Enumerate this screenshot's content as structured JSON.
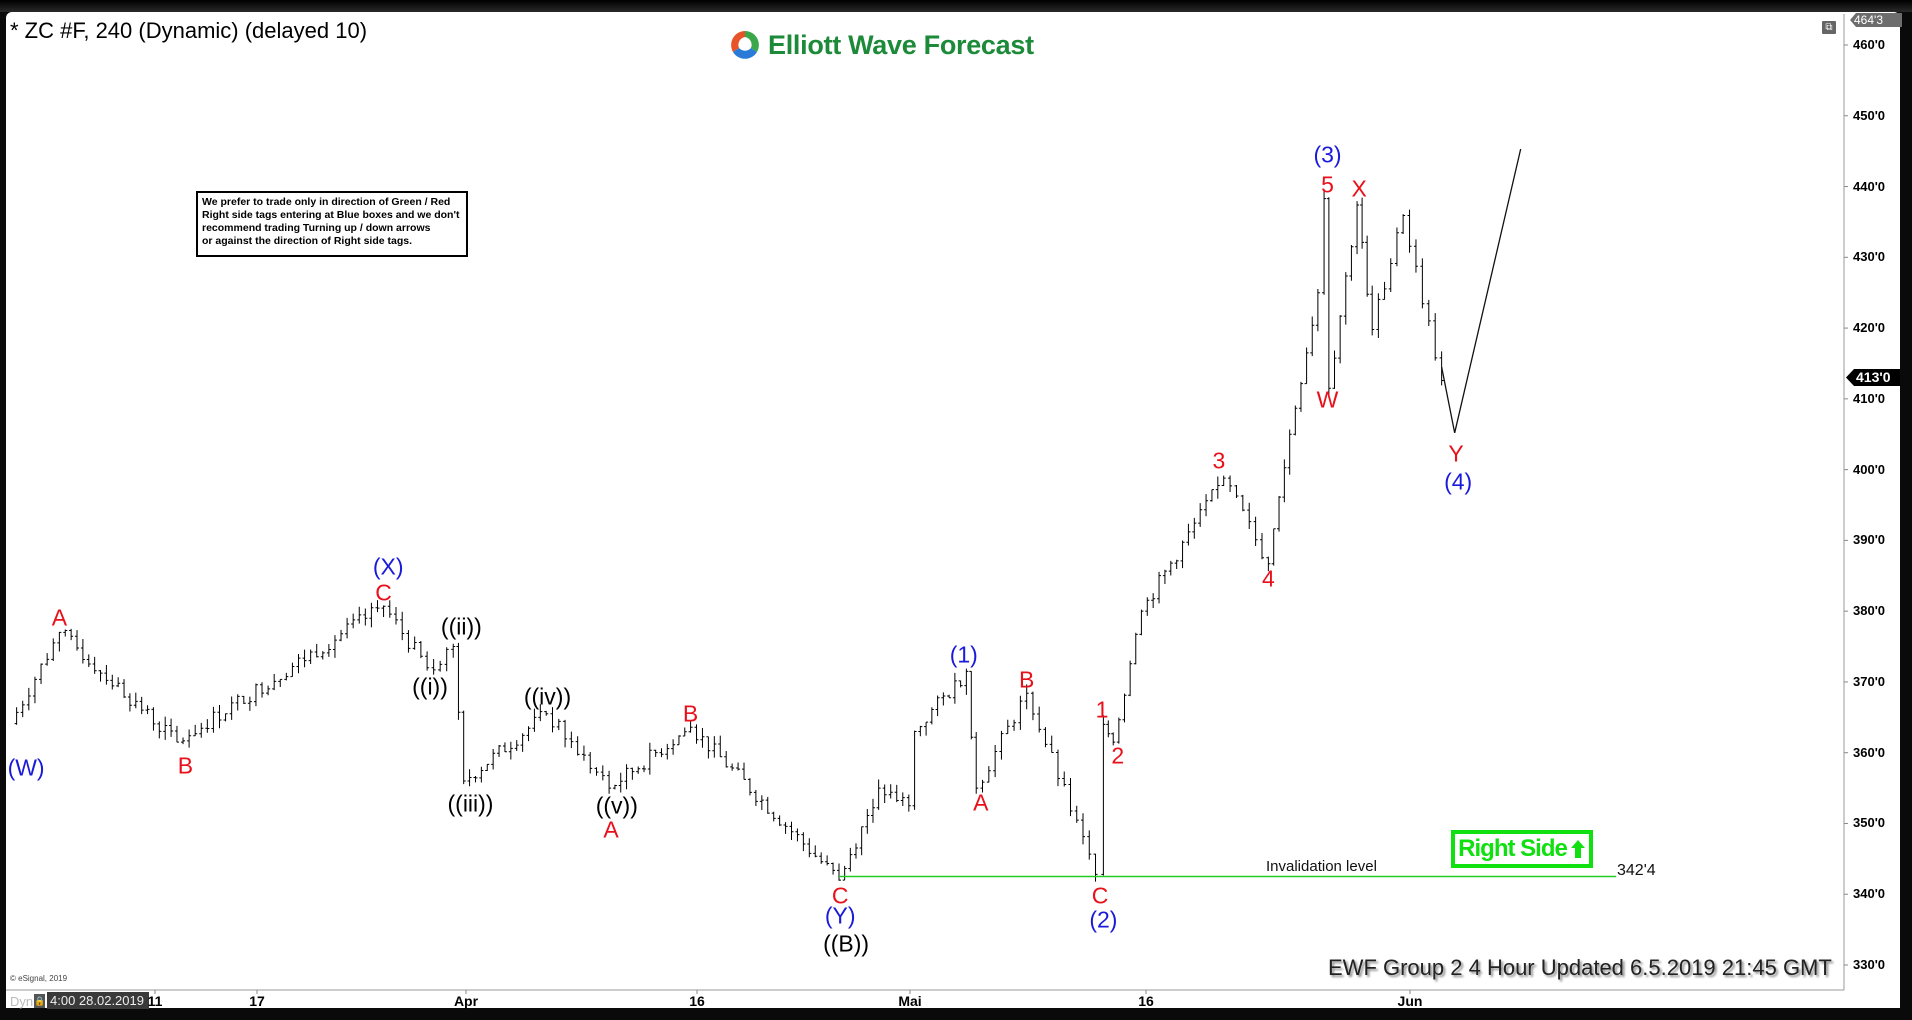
{
  "header": {
    "title": "* ZC #F, 240 (Dynamic) (delayed 10)",
    "logo_text": "Elliott Wave Forecast"
  },
  "note": {
    "lines": [
      "We prefer to trade only in direction of Green / Red",
      "Right side tags entering at Blue boxes and we don't",
      "recommend trading Turning up / down arrows",
      "or against the direction of Right side tags."
    ]
  },
  "right_side_tag": {
    "label": "Right Side",
    "icon": "arrow-up-icon",
    "color": "#10e010"
  },
  "footer": {
    "updated": "EWF Group 2 4 Hour Updated 6.5.2019 21:45 GMT",
    "copyright": "© eSignal, 2019",
    "mode": "Dyn",
    "cursor_date": "4:00 28.02.2019"
  },
  "axis_tags": {
    "high": "464'3",
    "last": "413'0"
  },
  "chart_data": {
    "type": "ohlc-bar",
    "symbol": "ZC #F",
    "interval": "240",
    "ylim": [
      327,
      464.375
    ],
    "y_ticks": [
      "460'0",
      "450'0",
      "440'0",
      "430'0",
      "420'0",
      "410'0",
      "400'0",
      "390'0",
      "380'0",
      "370'0",
      "360'0",
      "350'0",
      "340'0",
      "330'0"
    ],
    "y_tick_values": [
      460,
      450,
      440,
      430,
      420,
      410,
      400,
      390,
      380,
      370,
      360,
      350,
      340,
      330
    ],
    "x_ticks": [
      {
        "label": "11",
        "date": "2019-03-11"
      },
      {
        "label": "17",
        "date": "2019-03-17"
      },
      {
        "label": "Apr",
        "date": "2019-04-01"
      },
      {
        "label": "16",
        "date": "2019-04-16"
      },
      {
        "label": "Mai",
        "date": "2019-05-01"
      },
      {
        "label": "16",
        "date": "2019-05-16"
      },
      {
        "label": "Jun",
        "date": "2019-06-01"
      }
    ],
    "last_price": 413,
    "price_path": [
      [
        "2019-03-02T12:00",
        364.1
      ],
      [
        "2019-03-05T09:00",
        377
      ],
      [
        "2019-03-12T07:00",
        361.5
      ],
      [
        "2019-03-26T02:00",
        380.7
      ],
      [
        "2019-03-29T05:00",
        372
      ],
      [
        "2019-03-31T02:00",
        375
      ],
      [
        "2019-03-31T20:00",
        356
      ],
      [
        "2019-04-06T05:00",
        365.5
      ],
      [
        "2019-04-10T07:00",
        355
      ],
      [
        "2019-04-15T14:00",
        363.6
      ],
      [
        "2019-04-26T00:00",
        342
      ],
      [
        "2019-04-28T19:00",
        355
      ],
      [
        "2019-04-30T22:00",
        352.5
      ],
      [
        "2019-05-01T07:00",
        363
      ],
      [
        "2019-05-04T14:00",
        371.5
      ],
      [
        "2019-05-05T05:00",
        355
      ],
      [
        "2019-05-08T10:00",
        368.4
      ],
      [
        "2019-05-12T19:00",
        342.8
      ],
      [
        "2019-05-13T07:00",
        364
      ],
      [
        "2019-05-13T22:00",
        361.5
      ],
      [
        "2019-05-15T17:00",
        380
      ],
      [
        "2019-05-20T17:00",
        398.8
      ],
      [
        "2019-05-23T10:00",
        386.7
      ],
      [
        "2019-05-24T17:00",
        405
      ],
      [
        "2019-05-26T10:00",
        425
      ],
      [
        "2019-05-26T19:00",
        438.3
      ],
      [
        "2019-05-27T02:00",
        411.5
      ],
      [
        "2019-05-28T19:00",
        437.4
      ],
      [
        "2019-05-29T17:00",
        419.8
      ],
      [
        "2019-05-31T14:00",
        435.9
      ],
      [
        "2019-06-02T22:00",
        412.6
      ]
    ],
    "projection": [
      [
        "2019-06-02T22:00",
        414.5
      ],
      [
        "2019-06-03T17:00",
        405.2
      ],
      [
        "2019-06-07T17:00",
        445.3
      ]
    ],
    "invalidation": {
      "label": "Invalidation level",
      "value": 342.5,
      "value_label": "342'4",
      "from": "2019-04-26T00:00",
      "to": "2019-06-13T12:00",
      "color": "#22cc22"
    },
    "wave_labels": [
      {
        "text": "(W)",
        "color": "#1a1adb",
        "date": "2019-03-03T10:00",
        "price": 357.8
      },
      {
        "text": "A",
        "color": "#e8101a",
        "date": "2019-03-05T09:00",
        "price": 379.1
      },
      {
        "text": "B",
        "color": "#e8101a",
        "date": "2019-03-12T19:00",
        "price": 358.1
      },
      {
        "text": "(X)",
        "color": "#1a1adb",
        "date": "2019-03-26T10:00",
        "price": 386.2
      },
      {
        "text": "C",
        "color": "#e8101a",
        "date": "2019-03-26T02:00",
        "price": 382.6
      },
      {
        "text": "((ii))",
        "color": "#000000",
        "date": "2019-03-31T16:00",
        "price": 377.8
      },
      {
        "text": "((i))",
        "color": "#000000",
        "date": "2019-03-29T10:00",
        "price": 369.3
      },
      {
        "text": "((iii))",
        "color": "#000000",
        "date": "2019-04-01T07:00",
        "price": 352.8
      },
      {
        "text": "((iv))",
        "color": "#000000",
        "date": "2019-04-06T07:00",
        "price": 367.9
      },
      {
        "text": "((v))",
        "color": "#000000",
        "date": "2019-04-10T19:00",
        "price": 352.4
      },
      {
        "text": "A",
        "color": "#e8101a",
        "date": "2019-04-10T10:00",
        "price": 349.1
      },
      {
        "text": "B",
        "color": "#e8101a",
        "date": "2019-04-15T14:00",
        "price": 365.5
      },
      {
        "text": "C",
        "color": "#e8101a",
        "date": "2019-04-26T02:00",
        "price": 339.7
      },
      {
        "text": "(Y)",
        "color": "#1a1adb",
        "date": "2019-04-26T02:00",
        "price": 336.9
      },
      {
        "text": "((B))",
        "color": "#000000",
        "date": "2019-04-26T12:00",
        "price": 332.9
      },
      {
        "text": "(1)",
        "color": "#1a1adb",
        "date": "2019-05-04T10:00",
        "price": 373.8
      },
      {
        "text": "A",
        "color": "#e8101a",
        "date": "2019-05-05T12:00",
        "price": 352.9
      },
      {
        "text": "B",
        "color": "#e8101a",
        "date": "2019-05-08T10:00",
        "price": 370.3
      },
      {
        "text": "1",
        "color": "#e8101a",
        "date": "2019-05-13T05:00",
        "price": 366
      },
      {
        "text": "2",
        "color": "#e8101a",
        "date": "2019-05-14T05:00",
        "price": 359.5
      },
      {
        "text": "C",
        "color": "#e8101a",
        "date": "2019-05-13T02:00",
        "price": 339.7
      },
      {
        "text": "(2)",
        "color": "#1a1adb",
        "date": "2019-05-13T07:00",
        "price": 336.4
      },
      {
        "text": "3",
        "color": "#e8101a",
        "date": "2019-05-20T10:00",
        "price": 401.2
      },
      {
        "text": "4",
        "color": "#e8101a",
        "date": "2019-05-23T10:00",
        "price": 384.5
      },
      {
        "text": "(3)",
        "color": "#1a1adb",
        "date": "2019-05-27T00:00",
        "price": 444.5
      },
      {
        "text": "5",
        "color": "#e8101a",
        "date": "2019-05-27T00:00",
        "price": 440.2
      },
      {
        "text": "X",
        "color": "#e8101a",
        "date": "2019-05-28T22:00",
        "price": 439.7
      },
      {
        "text": "W",
        "color": "#e8101a",
        "date": "2019-05-27T00:00",
        "price": 409.8
      },
      {
        "text": "Y",
        "color": "#e8101a",
        "date": "2019-06-03T19:00",
        "price": 402.2
      },
      {
        "text": "(4)",
        "color": "#1a1adb",
        "date": "2019-06-03T22:00",
        "price": 398.3
      }
    ]
  }
}
